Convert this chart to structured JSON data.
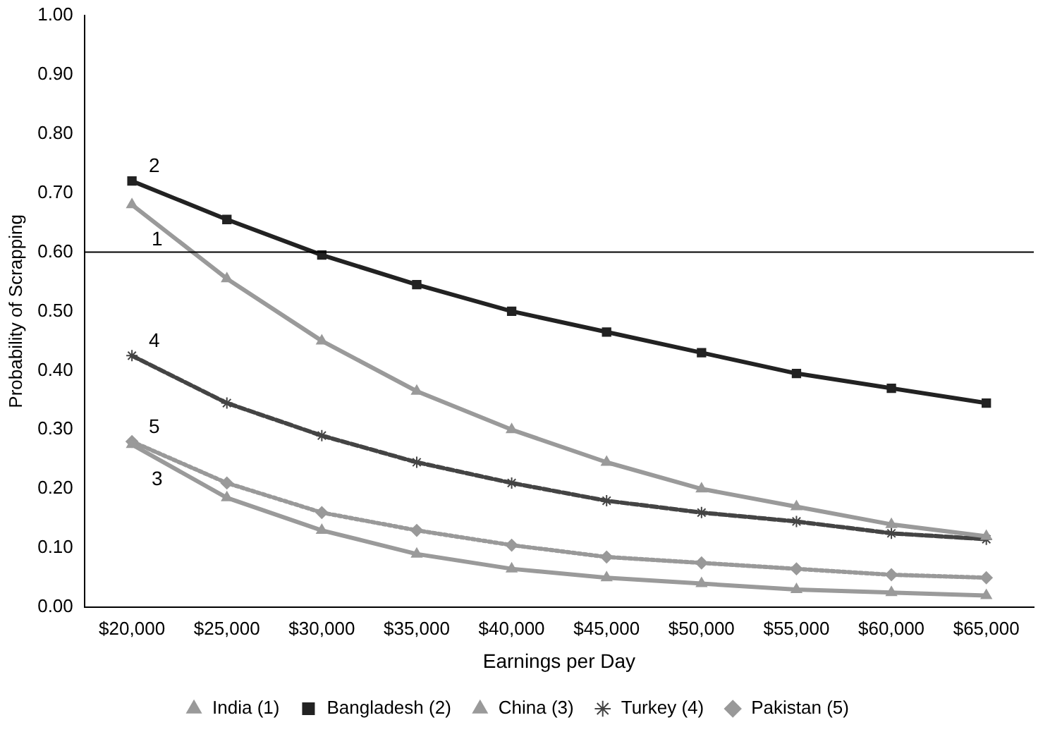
{
  "chart_data": {
    "type": "line",
    "xlabel": "Earnings per Day",
    "ylabel": "Probability of Scrapping",
    "categories": [
      "$20,000",
      "$25,000",
      "$30,000",
      "$35,000",
      "$40,000",
      "$45,000",
      "$50,000",
      "$55,000",
      "$60,000",
      "$65,000"
    ],
    "series": [
      {
        "name": "India (1)",
        "color": "#9a9a9a",
        "marker": "triangle",
        "line_style": "solid",
        "values": [
          0.68,
          0.555,
          0.45,
          0.365,
          0.3,
          0.245,
          0.2,
          0.17,
          0.14,
          0.12
        ]
      },
      {
        "name": "Bangladesh (2)",
        "color": "#222222",
        "marker": "square",
        "line_style": "solid",
        "values": [
          0.72,
          0.655,
          0.595,
          0.545,
          0.5,
          0.465,
          0.43,
          0.395,
          0.37,
          0.345
        ]
      },
      {
        "name": "China (3)",
        "color": "#9a9a9a",
        "marker": "triangle",
        "line_style": "solid",
        "values": [
          0.275,
          0.185,
          0.13,
          0.09,
          0.065,
          0.05,
          0.04,
          0.03,
          0.025,
          0.02
        ]
      },
      {
        "name": "Turkey (4)",
        "color": "#444444",
        "marker": "cross",
        "line_style": "dashed",
        "values": [
          0.425,
          0.345,
          0.29,
          0.245,
          0.21,
          0.18,
          0.16,
          0.145,
          0.125,
          0.115
        ]
      },
      {
        "name": "Pakistan (5)",
        "color": "#999999",
        "marker": "diamond",
        "line_style": "dotted",
        "values": [
          0.28,
          0.21,
          0.16,
          0.13,
          0.105,
          0.085,
          0.075,
          0.065,
          0.055,
          0.05
        ]
      }
    ],
    "ylim": [
      0,
      1
    ],
    "yticks": [
      {
        "value": 0,
        "label": "0.00"
      },
      {
        "value": 0.1,
        "label": "0.10"
      },
      {
        "value": 0.2,
        "label": "0.20"
      },
      {
        "value": 0.3,
        "label": "0.30"
      },
      {
        "value": 0.4,
        "label": "0.40"
      },
      {
        "value": 0.5,
        "label": "0.50"
      },
      {
        "value": 0.6,
        "label": "0.60"
      },
      {
        "value": 0.7,
        "label": "0.70"
      },
      {
        "value": 0.8,
        "label": "0.80"
      },
      {
        "value": 0.9,
        "label": "0.90"
      },
      {
        "value": 1,
        "label": "1.00"
      }
    ],
    "ref_lines": [
      {
        "axis": "y",
        "value": 0.6,
        "color": "#000000"
      }
    ],
    "annotations": [
      "1",
      "2",
      "3",
      "4",
      "5"
    ],
    "grid": false,
    "legend": "bottom"
  }
}
